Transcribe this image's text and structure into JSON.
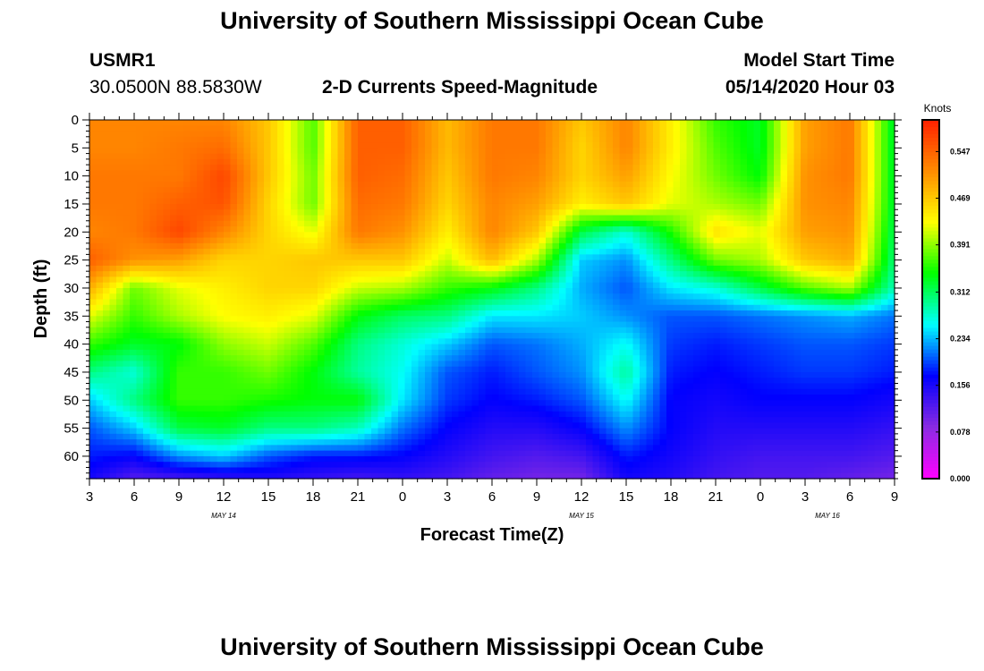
{
  "header": {
    "title": "University of Southern Mississippi Ocean Cube",
    "station": "USMR1",
    "location": "30.0500N 88.5830W",
    "subtitle": "2-D Currents Speed-Magnitude",
    "model_start_label": "Model Start Time",
    "model_start_value": "05/14/2020 Hour 03"
  },
  "footer": {
    "title": "University of Southern Mississippi Ocean Cube"
  },
  "chart_data": {
    "type": "heatmap",
    "xlabel": "Forecast Time(Z)",
    "ylabel": "Depth (ft)",
    "x_tick_labels": [
      "3",
      "6",
      "9",
      "12",
      "15",
      "18",
      "21",
      "0",
      "3",
      "6",
      "9",
      "12",
      "15",
      "18",
      "21",
      "0",
      "3",
      "6",
      "9"
    ],
    "date_labels": [
      {
        "label": "MAY 14",
        "x_tick_index": 3
      },
      {
        "label": "MAY 15",
        "x_tick_index": 11
      },
      {
        "label": "MAY 16",
        "x_tick_index": 16.5
      }
    ],
    "xlim_hours_from_start": [
      0,
      54
    ],
    "y_ticks": [
      0,
      5,
      10,
      15,
      20,
      25,
      30,
      35,
      40,
      45,
      50,
      55,
      60
    ],
    "ylim": [
      0,
      64
    ],
    "colorbar": {
      "unit": "Knots",
      "tick_labels": [
        "0.000",
        "0.078",
        "0.156",
        "0.234",
        "0.312",
        "0.391",
        "0.469",
        "0.547"
      ],
      "vmin": 0.0,
      "vmax": 0.6
    },
    "colors": [
      "#ff00ff",
      "#8a2be2",
      "#0000ff",
      "#00ffff",
      "#00ff00",
      "#ffff00",
      "#ff8c00",
      "#ff2000"
    ],
    "hours": [
      0,
      3,
      6,
      9,
      12,
      15,
      18,
      21,
      24,
      27,
      30,
      33,
      36,
      39,
      42,
      45,
      48,
      51,
      54
    ],
    "depth_rows": [
      0,
      5,
      10,
      15,
      20,
      25,
      30,
      35,
      40,
      45,
      50,
      55,
      60,
      64
    ],
    "speed_grid": [
      [
        0.52,
        0.52,
        0.52,
        0.52,
        0.47,
        0.37,
        0.55,
        0.55,
        0.48,
        0.53,
        0.53,
        0.47,
        0.52,
        0.44,
        0.36,
        0.33,
        0.5,
        0.53,
        0.32
      ],
      [
        0.52,
        0.52,
        0.53,
        0.54,
        0.47,
        0.37,
        0.55,
        0.55,
        0.48,
        0.53,
        0.53,
        0.46,
        0.52,
        0.44,
        0.37,
        0.33,
        0.5,
        0.53,
        0.32
      ],
      [
        0.53,
        0.53,
        0.53,
        0.57,
        0.47,
        0.38,
        0.55,
        0.54,
        0.47,
        0.53,
        0.52,
        0.46,
        0.5,
        0.43,
        0.38,
        0.34,
        0.51,
        0.53,
        0.32
      ],
      [
        0.53,
        0.53,
        0.55,
        0.56,
        0.46,
        0.38,
        0.54,
        0.53,
        0.46,
        0.52,
        0.5,
        0.44,
        0.47,
        0.42,
        0.4,
        0.38,
        0.51,
        0.52,
        0.32
      ],
      [
        0.52,
        0.53,
        0.57,
        0.52,
        0.46,
        0.42,
        0.53,
        0.51,
        0.44,
        0.52,
        0.47,
        0.32,
        0.27,
        0.35,
        0.45,
        0.42,
        0.5,
        0.51,
        0.31
      ],
      [
        0.55,
        0.51,
        0.5,
        0.46,
        0.46,
        0.47,
        0.47,
        0.47,
        0.41,
        0.48,
        0.4,
        0.24,
        0.22,
        0.3,
        0.38,
        0.4,
        0.47,
        0.49,
        0.3
      ],
      [
        0.49,
        0.38,
        0.42,
        0.44,
        0.46,
        0.46,
        0.41,
        0.4,
        0.36,
        0.34,
        0.3,
        0.23,
        0.2,
        0.25,
        0.27,
        0.32,
        0.37,
        0.4,
        0.28
      ],
      [
        0.42,
        0.36,
        0.4,
        0.43,
        0.44,
        0.42,
        0.34,
        0.31,
        0.3,
        0.25,
        0.25,
        0.24,
        0.22,
        0.2,
        0.2,
        0.21,
        0.22,
        0.23,
        0.21
      ],
      [
        0.36,
        0.33,
        0.34,
        0.39,
        0.41,
        0.37,
        0.3,
        0.27,
        0.24,
        0.2,
        0.21,
        0.23,
        0.26,
        0.19,
        0.18,
        0.19,
        0.2,
        0.2,
        0.19
      ],
      [
        0.3,
        0.27,
        0.36,
        0.36,
        0.38,
        0.34,
        0.29,
        0.26,
        0.2,
        0.18,
        0.2,
        0.22,
        0.29,
        0.18,
        0.17,
        0.18,
        0.19,
        0.19,
        0.18
      ],
      [
        0.24,
        0.3,
        0.36,
        0.36,
        0.35,
        0.34,
        0.34,
        0.25,
        0.19,
        0.17,
        0.18,
        0.2,
        0.26,
        0.17,
        0.16,
        0.17,
        0.17,
        0.17,
        0.16
      ],
      [
        0.2,
        0.24,
        0.32,
        0.33,
        0.3,
        0.3,
        0.28,
        0.21,
        0.17,
        0.15,
        0.15,
        0.17,
        0.22,
        0.17,
        0.15,
        0.15,
        0.15,
        0.15,
        0.14
      ],
      [
        0.18,
        0.17,
        0.22,
        0.24,
        0.2,
        0.18,
        0.18,
        0.17,
        0.15,
        0.13,
        0.12,
        0.13,
        0.18,
        0.16,
        0.14,
        0.13,
        0.13,
        0.13,
        0.12
      ],
      [
        0.16,
        0.12,
        0.13,
        0.14,
        0.15,
        0.14,
        0.13,
        0.14,
        0.13,
        0.11,
        0.1,
        0.1,
        0.16,
        0.15,
        0.13,
        0.12,
        0.12,
        0.11,
        0.1
      ]
    ]
  }
}
